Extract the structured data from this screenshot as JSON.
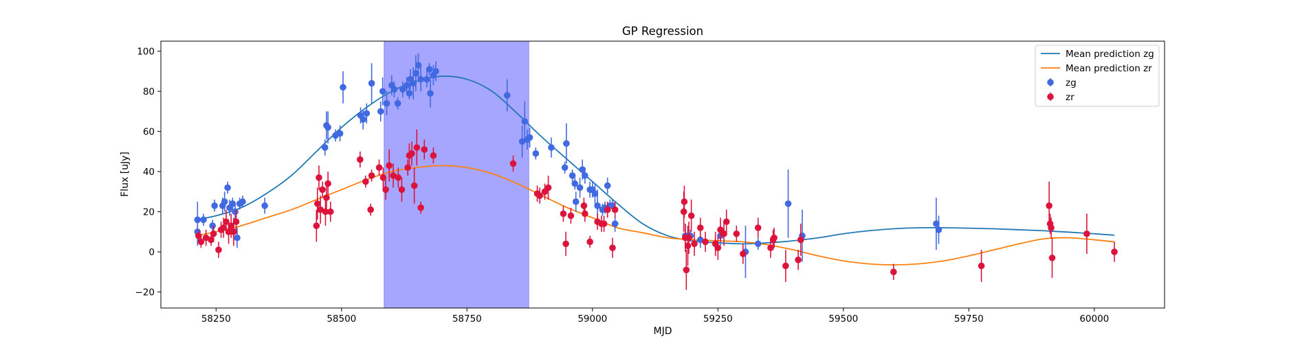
{
  "chart_data": {
    "type": "scatter",
    "title": "GP Regression",
    "xlabel": "MJD",
    "ylabel": "Flux [uJy]",
    "xlim": [
      58140,
      60140
    ],
    "ylim": [
      -28,
      105
    ],
    "xticks": [
      58250,
      58500,
      58750,
      59000,
      59250,
      59500,
      59750,
      60000
    ],
    "yticks": [
      -20,
      0,
      20,
      40,
      60,
      80,
      100
    ],
    "grid": false,
    "legend_position": "top-right",
    "shaded_region": {
      "x_range": [
        58585,
        58873
      ],
      "color": "#a6a6ff"
    },
    "series": [
      {
        "name": "Mean prediction zg",
        "kind": "line",
        "color": "#1f77b4",
        "x": [
          58210,
          58250,
          58300,
          58350,
          58400,
          58450,
          58500,
          58550,
          58600,
          58650,
          58700,
          58750,
          58800,
          58850,
          58900,
          58950,
          59000,
          59050,
          59100,
          59150,
          59200,
          59250,
          59300,
          59350,
          59400,
          59450,
          59500,
          59550,
          59600,
          59650,
          59700,
          59750,
          59800,
          59850,
          59900,
          59950,
          60000,
          60040
        ],
        "y": [
          16,
          18,
          22,
          29,
          38,
          50,
          62,
          72,
          80,
          85,
          87.5,
          86,
          80,
          69,
          57,
          46,
          35,
          24,
          14,
          8,
          5.5,
          4.5,
          4,
          4.5,
          5.5,
          7,
          9,
          10.5,
          11.5,
          12,
          12,
          11.8,
          11.5,
          11,
          10.5,
          9.8,
          9,
          8.3
        ]
      },
      {
        "name": "Mean prediction zr",
        "kind": "line",
        "color": "#ff7f0e",
        "x": [
          58210,
          58250,
          58300,
          58350,
          58400,
          58450,
          58500,
          58550,
          58600,
          58650,
          58700,
          58750,
          58800,
          58850,
          58900,
          58950,
          59000,
          59050,
          59100,
          59150,
          59200,
          59250,
          59300,
          59350,
          59400,
          59450,
          59500,
          59550,
          59600,
          59650,
          59700,
          59750,
          59800,
          59850,
          59900,
          59950,
          60000,
          60040
        ],
        "y": [
          8,
          10,
          13,
          17,
          21,
          26,
          31,
          36,
          40,
          42,
          43,
          42,
          39,
          34,
          28,
          22,
          17,
          12,
          9.5,
          7,
          6,
          5.5,
          5,
          3.5,
          1,
          -2,
          -4.5,
          -6,
          -6.5,
          -6,
          -4.5,
          -2,
          1,
          4,
          6.5,
          7,
          6,
          5
        ]
      },
      {
        "name": "zg",
        "kind": "errorbar",
        "color": "#4169e1",
        "points": [
          [
            58213,
            16,
            9
          ],
          [
            58213,
            10,
            7
          ],
          [
            58225,
            16,
            3
          ],
          [
            58243,
            13,
            3
          ],
          [
            58247,
            23,
            3
          ],
          [
            58263,
            23,
            4
          ],
          [
            58267,
            25,
            5
          ],
          [
            58273,
            32,
            3
          ],
          [
            58277,
            22,
            4
          ],
          [
            58283,
            24,
            3
          ],
          [
            58288,
            20,
            4
          ],
          [
            58292,
            7,
            5
          ],
          [
            58297,
            24,
            3
          ],
          [
            58303,
            25,
            3
          ],
          [
            58347,
            23,
            4
          ],
          [
            58467,
            52,
            4
          ],
          [
            58470,
            63,
            7
          ],
          [
            58473,
            62,
            8
          ],
          [
            58488,
            58,
            3
          ],
          [
            58497,
            59,
            4
          ],
          [
            58503,
            82,
            8
          ],
          [
            58538,
            68,
            4
          ],
          [
            58543,
            66,
            5
          ],
          [
            58550,
            69,
            5
          ],
          [
            58560,
            84,
            10
          ],
          [
            58578,
            70,
            5
          ],
          [
            58582,
            80,
            7
          ],
          [
            58590,
            74,
            6
          ],
          [
            58600,
            83,
            5
          ],
          [
            58605,
            81,
            4
          ],
          [
            58612,
            74,
            3
          ],
          [
            58622,
            81,
            4
          ],
          [
            58630,
            83,
            4
          ],
          [
            58635,
            79,
            3
          ],
          [
            58637,
            86,
            5
          ],
          [
            58643,
            84,
            8
          ],
          [
            58648,
            89,
            9
          ],
          [
            58653,
            93,
            6
          ],
          [
            58658,
            86,
            6
          ],
          [
            58670,
            86,
            4
          ],
          [
            58675,
            91,
            3
          ],
          [
            58677,
            79,
            7
          ],
          [
            58683,
            88,
            5
          ],
          [
            58688,
            90,
            5
          ],
          [
            58830,
            78,
            8
          ],
          [
            58860,
            55,
            8
          ],
          [
            58865,
            65,
            10
          ],
          [
            58870,
            56,
            5
          ],
          [
            58875,
            57,
            5
          ],
          [
            58887,
            49,
            3
          ],
          [
            58918,
            52,
            5
          ],
          [
            58945,
            42,
            3
          ],
          [
            58948,
            54,
            10
          ],
          [
            58960,
            38,
            3
          ],
          [
            58965,
            34,
            3
          ],
          [
            58967,
            25,
            5
          ],
          [
            58975,
            32,
            5
          ],
          [
            58980,
            41,
            5
          ],
          [
            58985,
            38,
            4
          ],
          [
            58995,
            31,
            4
          ],
          [
            59000,
            31,
            4
          ],
          [
            59005,
            29,
            5
          ],
          [
            59010,
            23,
            8
          ],
          [
            59020,
            21,
            3
          ],
          [
            59025,
            22,
            3
          ],
          [
            59030,
            33,
            4
          ],
          [
            59035,
            23,
            3
          ],
          [
            59040,
            23,
            3
          ],
          [
            59045,
            14,
            4
          ],
          [
            59185,
            8,
            6
          ],
          [
            59195,
            8,
            3
          ],
          [
            59215,
            6,
            4
          ],
          [
            59245,
            4,
            3
          ],
          [
            59255,
            8,
            5
          ],
          [
            59305,
            0,
            13
          ],
          [
            59330,
            4,
            3
          ],
          [
            59390,
            24,
            17
          ],
          [
            59418,
            8,
            13
          ],
          [
            59685,
            14,
            13
          ],
          [
            59690,
            11,
            7
          ]
        ]
      },
      {
        "name": "zr",
        "kind": "errorbar",
        "color": "#dc143c",
        "points": [
          [
            58215,
            8,
            3
          ],
          [
            58220,
            5,
            3
          ],
          [
            58230,
            7,
            4
          ],
          [
            58240,
            6,
            3
          ],
          [
            58245,
            9,
            4
          ],
          [
            58255,
            1,
            4
          ],
          [
            58260,
            11,
            4
          ],
          [
            58265,
            12,
            5
          ],
          [
            58270,
            15,
            6
          ],
          [
            58275,
            10,
            6
          ],
          [
            58280,
            13,
            6
          ],
          [
            58285,
            10,
            7
          ],
          [
            58290,
            15,
            6
          ],
          [
            58450,
            13,
            8
          ],
          [
            58452,
            24,
            8
          ],
          [
            58455,
            37,
            6
          ],
          [
            58458,
            21,
            7
          ],
          [
            58462,
            31,
            4
          ],
          [
            58468,
            20,
            7
          ],
          [
            58470,
            27,
            6
          ],
          [
            58473,
            34,
            6
          ],
          [
            58478,
            20,
            5
          ],
          [
            58537,
            46,
            4
          ],
          [
            58548,
            35,
            3
          ],
          [
            58558,
            21,
            3
          ],
          [
            58560,
            38,
            3
          ],
          [
            58575,
            42,
            4
          ],
          [
            58583,
            37,
            5
          ],
          [
            58588,
            31,
            5
          ],
          [
            58595,
            43,
            8
          ],
          [
            58603,
            38,
            6
          ],
          [
            58613,
            37,
            5
          ],
          [
            58620,
            31,
            6
          ],
          [
            58632,
            42,
            4
          ],
          [
            58635,
            48,
            6
          ],
          [
            58640,
            49,
            6
          ],
          [
            58645,
            33,
            9
          ],
          [
            58650,
            52,
            9
          ],
          [
            58658,
            22,
            3
          ],
          [
            58665,
            51,
            5
          ],
          [
            58683,
            48,
            4
          ],
          [
            58842,
            44,
            4
          ],
          [
            58890,
            29,
            4
          ],
          [
            58895,
            28,
            4
          ],
          [
            58905,
            30,
            4
          ],
          [
            58912,
            32,
            6
          ],
          [
            58942,
            19,
            4
          ],
          [
            58947,
            4,
            6
          ],
          [
            58957,
            18,
            4
          ],
          [
            58983,
            23,
            4
          ],
          [
            58985,
            19,
            4
          ],
          [
            58995,
            5,
            3
          ],
          [
            59010,
            15,
            4
          ],
          [
            59018,
            14,
            4
          ],
          [
            59023,
            14,
            4
          ],
          [
            59030,
            21,
            4
          ],
          [
            59040,
            2,
            5
          ],
          [
            59045,
            21,
            4
          ],
          [
            59182,
            20,
            10
          ],
          [
            59183,
            25,
            8
          ],
          [
            59185,
            7,
            7
          ],
          [
            59187,
            -9,
            10
          ],
          [
            59190,
            3,
            10
          ],
          [
            59192,
            7,
            8
          ],
          [
            59197,
            18,
            8
          ],
          [
            59203,
            4,
            6
          ],
          [
            59215,
            12,
            5
          ],
          [
            59225,
            5,
            5
          ],
          [
            59245,
            4,
            6
          ],
          [
            59250,
            2,
            6
          ],
          [
            59255,
            11,
            6
          ],
          [
            59262,
            9,
            6
          ],
          [
            59267,
            15,
            6
          ],
          [
            59287,
            9,
            4
          ],
          [
            59300,
            -1,
            5
          ],
          [
            59330,
            12,
            5
          ],
          [
            59355,
            2,
            5
          ],
          [
            59360,
            6,
            5
          ],
          [
            59362,
            7,
            5
          ],
          [
            59385,
            -7,
            8
          ],
          [
            59410,
            -4,
            5
          ],
          [
            59415,
            6,
            8
          ],
          [
            59600,
            -10,
            4
          ],
          [
            59775,
            -7,
            8
          ],
          [
            59910,
            23,
            12
          ],
          [
            59912,
            14,
            5
          ],
          [
            59914,
            12,
            5
          ],
          [
            59916,
            -3,
            10
          ],
          [
            59985,
            9,
            10
          ],
          [
            60040,
            0,
            5
          ]
        ]
      }
    ]
  }
}
